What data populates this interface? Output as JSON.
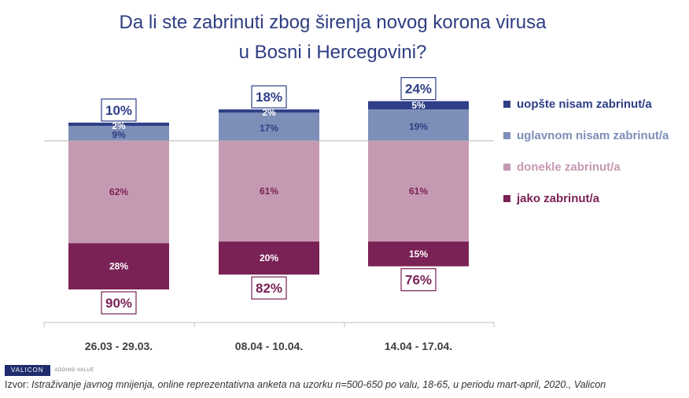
{
  "title": {
    "line1": "Da li ste zabrinuti zbog širenja novog korona virusa",
    "line2": "u Bosni i Hercegovini?"
  },
  "chart_data": {
    "type": "bar",
    "stacked": true,
    "categories": [
      "26.03 - 29.03.",
      "08.04 - 10.04.",
      "14.04 - 17.04."
    ],
    "series": [
      {
        "name": "uopšte nisam zabrinut/a",
        "values": [
          2,
          2,
          5
        ],
        "color": "#2e3f87",
        "labels": [
          "2%",
          "2%",
          "5%"
        ]
      },
      {
        "name": "uglavnom nisam zabrinut/a",
        "values": [
          9,
          17,
          19
        ],
        "color": "#7d8eb8",
        "labels": [
          "9%",
          "17%",
          "19%"
        ]
      },
      {
        "name": "donekle zabrinut/a",
        "values": [
          62,
          61,
          61
        ],
        "color": "#c699b2",
        "labels": [
          "62%",
          "61%",
          "61%"
        ]
      },
      {
        "name": "jako zabrinut/a",
        "values": [
          28,
          20,
          15
        ],
        "color": "#7a2255",
        "labels": [
          "28%",
          "20%",
          "15%"
        ]
      }
    ],
    "not_concerned_totals": [
      "10%",
      "18%",
      "24%"
    ],
    "concerned_totals": [
      "90%",
      "82%",
      "76%"
    ],
    "not_concerned_color": "#2e3f87",
    "concerned_color": "#7a2255"
  },
  "legend": [
    {
      "label": "uopšte nisam zabrinut/a",
      "color": "#2e3f87"
    },
    {
      "label": "uglavnom nisam zabrinut/a",
      "color": "#7d8eb8"
    },
    {
      "label": "donekle zabrinut/a",
      "color": "#c699b2"
    },
    {
      "label": "jako zabrinut/a",
      "color": "#7a2255"
    }
  ],
  "footer": {
    "logo": "VALICON",
    "tagline": "ADDING VALUE",
    "source_prefix": "Izvor:",
    "source_text": "Istraživanje javnog mnijenja, online reprezentativna anketa na uzorku n=500-650 po valu, 18-65, u periodu mart-april, 2020., Valicon"
  }
}
